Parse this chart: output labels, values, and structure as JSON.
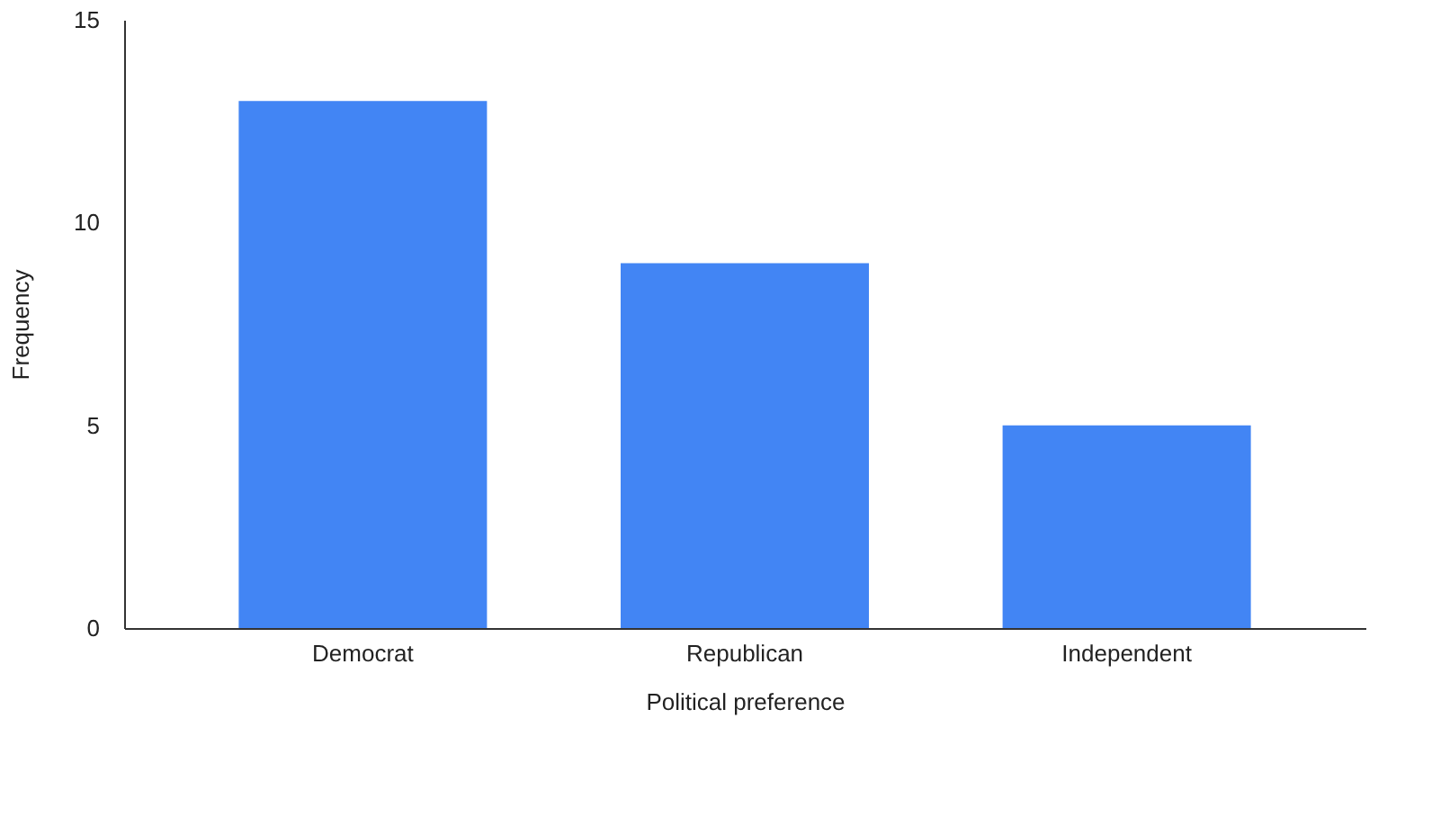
{
  "chart_data": {
    "type": "bar",
    "xlabel": "Political preference",
    "ylabel": "Frequency",
    "categories": [
      "Democrat",
      "Republican",
      "Independent"
    ],
    "values": [
      13,
      9,
      5
    ],
    "color": "#4285f4",
    "ylim": [
      0,
      15
    ],
    "yticks": [
      0,
      5,
      10,
      15
    ],
    "grid": false
  }
}
